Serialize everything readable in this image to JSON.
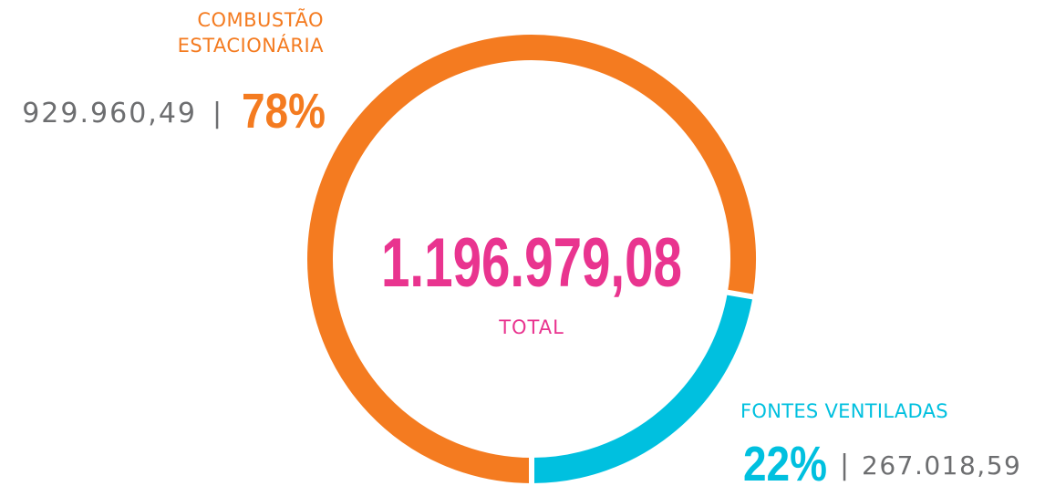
{
  "chart_data": {
    "type": "donut",
    "categories": [
      "COMBUSTÃO ESTACIONÁRIA",
      "FONTES VENTILADAS"
    ],
    "values": [
      929960.49,
      267018.59
    ],
    "value_labels": [
      "929.960,49",
      "267.018,59"
    ],
    "percentages": [
      78,
      22
    ],
    "percentage_labels": [
      "78%",
      "22%"
    ],
    "colors": [
      "#f47b20",
      "#00c0df"
    ],
    "separator": "|",
    "total": {
      "value": 1196979.08,
      "label": "1.196.979,08"
    },
    "total_title": "TOTAL",
    "total_color": "#e9348f"
  }
}
